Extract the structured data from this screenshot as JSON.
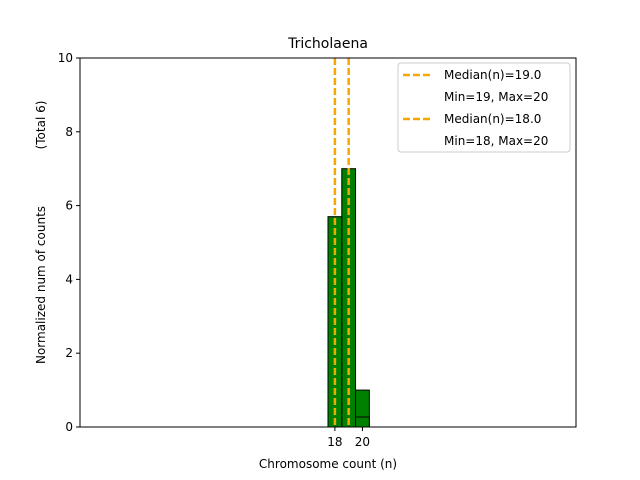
{
  "chart_data": {
    "type": "bar",
    "title": "Tricholaena",
    "xlabel": "Chromosome count (n)",
    "ylabel": "Normalized num of counts",
    "ylabel_secondary": "(Total 6)",
    "xlim": [
      0,
      36
    ],
    "ylim": [
      0,
      10
    ],
    "xticks": [
      18,
      20
    ],
    "yticks": [
      0,
      2,
      4,
      6,
      8,
      10
    ],
    "bar_color": "#008000",
    "bar_edge_color": "#000000",
    "median_color": "#f5a800",
    "series": [
      {
        "name": "Median(n)=19.0",
        "stats": "Min=19, Max=20",
        "median": 19.0,
        "bars": [
          {
            "x0": 19,
            "x1": 20,
            "value": 7.0
          },
          {
            "x0": 20,
            "x1": 21,
            "value": 1.0
          }
        ]
      },
      {
        "name": "Median(n)=18.0",
        "stats": "Min=18, Max=20",
        "median": 18.0,
        "bars": [
          {
            "x0": 18,
            "x1": 19,
            "value": 5.7
          },
          {
            "x0": 19,
            "x1": 20,
            "value": 0.0
          },
          {
            "x0": 20,
            "x1": 21,
            "value": 0.27
          }
        ]
      }
    ],
    "flat_segment": [
      21,
      23.5
    ]
  }
}
